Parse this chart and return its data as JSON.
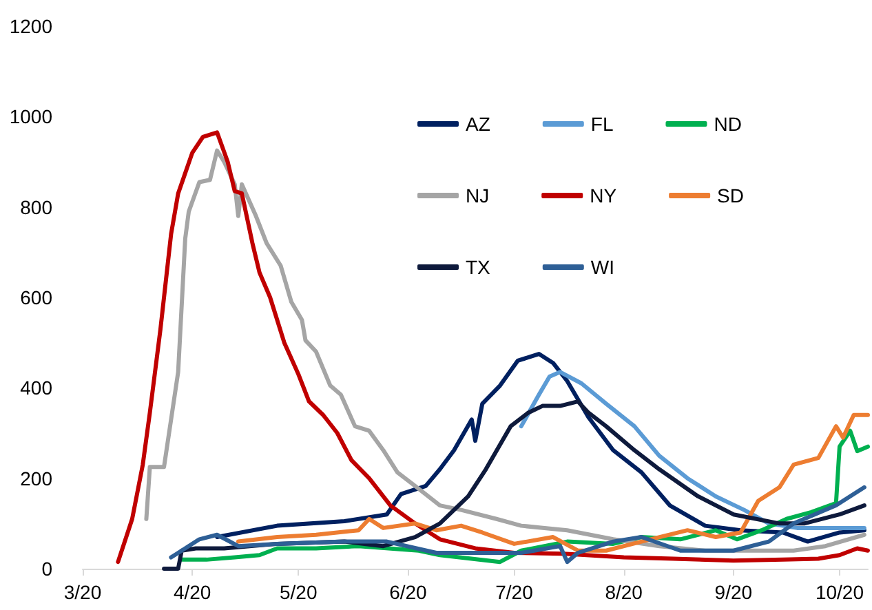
{
  "chart_data": {
    "type": "line",
    "xlim": [
      "2020-03-01",
      "2020-10-09"
    ],
    "ylim": [
      0,
      1200
    ],
    "yticks": [
      0,
      200,
      400,
      600,
      800,
      1000,
      1200
    ],
    "xticks": [
      {
        "value": "2020-03-01",
        "label": "3/20"
      },
      {
        "value": "2020-04-01",
        "label": "4/20"
      },
      {
        "value": "2020-05-01",
        "label": "5/20"
      },
      {
        "value": "2020-06-01",
        "label": "6/20"
      },
      {
        "value": "2020-07-01",
        "label": "7/20"
      },
      {
        "value": "2020-08-01",
        "label": "8/20"
      },
      {
        "value": "2020-09-01",
        "label": "9/20"
      },
      {
        "value": "2020-10-01",
        "label": "10/20"
      }
    ],
    "grid": false,
    "legend": "top right",
    "marker": "none",
    "line_style": "solid",
    "series": [
      {
        "name": "AZ",
        "color": "#002060",
        "x": [
          "2020-04-08",
          "2020-04-25",
          "2020-05-14",
          "2020-05-26",
          "2020-05-30",
          "2020-06-06",
          "2020-06-10",
          "2020-06-14",
          "2020-06-19",
          "2020-06-20",
          "2020-06-22",
          "2020-06-27",
          "2020-07-02",
          "2020-07-06",
          "2020-07-08",
          "2020-07-12",
          "2020-07-16",
          "2020-07-22",
          "2020-07-29",
          "2020-08-06",
          "2020-08-14",
          "2020-08-24",
          "2020-09-03",
          "2020-09-15",
          "2020-09-22",
          "2020-10-01",
          "2020-10-08"
        ],
        "values": [
          70,
          95,
          105,
          120,
          165,
          183,
          220,
          262,
          330,
          283,
          365,
          405,
          460,
          470,
          475,
          455,
          415,
          335,
          262,
          213,
          140,
          95,
          85,
          80,
          60,
          80,
          85
        ]
      },
      {
        "name": "FL",
        "color": "#5b9bd5",
        "x": [
          "2020-07-03",
          "2020-07-08",
          "2020-07-11",
          "2020-07-14",
          "2020-07-20",
          "2020-07-27",
          "2020-08-04",
          "2020-08-11",
          "2020-08-19",
          "2020-08-27",
          "2020-09-04",
          "2020-09-11",
          "2020-09-19",
          "2020-10-01",
          "2020-10-08"
        ],
        "values": [
          315,
          385,
          425,
          435,
          410,
          365,
          315,
          250,
          200,
          160,
          130,
          100,
          90,
          90,
          90
        ]
      },
      {
        "name": "ND",
        "color": "#00b050",
        "x": [
          "2020-03-29",
          "2020-04-05",
          "2020-04-13",
          "2020-04-20",
          "2020-04-25",
          "2020-05-06",
          "2020-05-18",
          "2020-06-04",
          "2020-06-10",
          "2020-06-27",
          "2020-07-03",
          "2020-07-16",
          "2020-07-29",
          "2020-08-06",
          "2020-08-17",
          "2020-08-27",
          "2020-09-02",
          "2020-09-09",
          "2020-09-16",
          "2020-09-23",
          "2020-09-30",
          "2020-10-01",
          "2020-10-04",
          "2020-10-06",
          "2020-10-09"
        ],
        "values": [
          20,
          20,
          25,
          30,
          45,
          45,
          50,
          40,
          30,
          15,
          40,
          60,
          55,
          70,
          65,
          85,
          65,
          85,
          110,
          125,
          145,
          270,
          305,
          260,
          270
        ]
      },
      {
        "name": "NJ",
        "color": "#a5a5a5",
        "x": [
          "2020-03-19",
          "2020-03-20",
          "2020-03-24",
          "2020-03-28",
          "2020-03-30",
          "2020-03-31",
          "2020-04-03",
          "2020-04-06",
          "2020-04-08",
          "2020-04-10",
          "2020-04-13",
          "2020-04-14",
          "2020-04-15",
          "2020-04-19",
          "2020-04-22",
          "2020-04-26",
          "2020-04-29",
          "2020-05-02",
          "2020-05-03",
          "2020-05-06",
          "2020-05-10",
          "2020-05-13",
          "2020-05-17",
          "2020-05-21",
          "2020-05-25",
          "2020-05-29",
          "2020-06-03",
          "2020-06-10",
          "2020-06-16",
          "2020-06-26",
          "2020-07-03",
          "2020-07-16",
          "2020-07-29",
          "2020-08-11",
          "2020-08-24",
          "2020-09-06",
          "2020-09-18",
          "2020-09-27",
          "2020-10-08"
        ],
        "values": [
          110,
          225,
          225,
          435,
          730,
          790,
          855,
          860,
          925,
          900,
          850,
          780,
          850,
          780,
          720,
          670,
          590,
          550,
          505,
          480,
          405,
          385,
          315,
          305,
          262,
          213,
          183,
          140,
          130,
          110,
          95,
          85,
          65,
          50,
          40,
          40,
          40,
          50,
          75
        ]
      },
      {
        "name": "NY",
        "color": "#c00000",
        "x": [
          "2020-03-11",
          "2020-03-15",
          "2020-03-18",
          "2020-03-20",
          "2020-03-23",
          "2020-03-26",
          "2020-03-28",
          "2020-04-01",
          "2020-04-04",
          "2020-04-08",
          "2020-04-11",
          "2020-04-13",
          "2020-04-15",
          "2020-04-18",
          "2020-04-20",
          "2020-04-23",
          "2020-04-27",
          "2020-05-01",
          "2020-05-04",
          "2020-05-08",
          "2020-05-12",
          "2020-05-16",
          "2020-05-21",
          "2020-05-27",
          "2020-06-03",
          "2020-06-10",
          "2020-06-20",
          "2020-07-01",
          "2020-07-15",
          "2020-08-01",
          "2020-08-15",
          "2020-09-01",
          "2020-09-15",
          "2020-09-25",
          "2020-10-01",
          "2020-10-06",
          "2020-10-09"
        ],
        "values": [
          15,
          110,
          230,
          345,
          530,
          740,
          830,
          920,
          955,
          965,
          900,
          835,
          830,
          720,
          655,
          600,
          500,
          430,
          370,
          340,
          300,
          240,
          200,
          140,
          100,
          65,
          45,
          35,
          33,
          25,
          22,
          18,
          20,
          22,
          30,
          45,
          40
        ]
      },
      {
        "name": "SD",
        "color": "#ed7d31",
        "x": [
          "2020-04-14",
          "2020-04-25",
          "2020-05-06",
          "2020-05-18",
          "2020-05-21",
          "2020-05-25",
          "2020-06-03",
          "2020-06-09",
          "2020-06-16",
          "2020-06-22",
          "2020-07-01",
          "2020-07-12",
          "2020-07-19",
          "2020-07-27",
          "2020-08-06",
          "2020-08-19",
          "2020-08-27",
          "2020-09-03",
          "2020-09-08",
          "2020-09-14",
          "2020-09-18",
          "2020-09-25",
          "2020-09-30",
          "2020-10-02",
          "2020-10-05",
          "2020-10-09"
        ],
        "values": [
          60,
          70,
          75,
          85,
          110,
          90,
          100,
          85,
          95,
          80,
          55,
          70,
          40,
          40,
          60,
          85,
          70,
          80,
          150,
          180,
          230,
          245,
          315,
          290,
          340,
          340
        ]
      },
      {
        "name": "TX",
        "color": "#0e1a3c",
        "x": [
          "2020-03-24",
          "2020-03-28",
          "2020-03-29",
          "2020-04-02",
          "2020-04-10",
          "2020-04-25",
          "2020-05-14",
          "2020-05-25",
          "2020-06-03",
          "2020-06-10",
          "2020-06-18",
          "2020-06-23",
          "2020-06-30",
          "2020-07-05",
          "2020-07-09",
          "2020-07-14",
          "2020-07-19",
          "2020-07-22",
          "2020-07-27",
          "2020-08-04",
          "2020-08-11",
          "2020-08-22",
          "2020-09-01",
          "2020-09-14",
          "2020-09-21",
          "2020-10-01",
          "2020-10-08"
        ],
        "values": [
          0,
          0,
          40,
          45,
          45,
          55,
          60,
          50,
          70,
          100,
          160,
          220,
          315,
          345,
          360,
          360,
          370,
          345,
          315,
          262,
          220,
          160,
          120,
          100,
          100,
          120,
          140
        ]
      },
      {
        "name": "WI",
        "color": "#2e5f96",
        "x": [
          "2020-03-26",
          "2020-04-03",
          "2020-04-08",
          "2020-04-14",
          "2020-04-25",
          "2020-05-14",
          "2020-05-26",
          "2020-06-09",
          "2020-07-03",
          "2020-07-14",
          "2020-07-16",
          "2020-07-19",
          "2020-07-29",
          "2020-08-06",
          "2020-08-17",
          "2020-09-01",
          "2020-09-11",
          "2020-09-18",
          "2020-09-30",
          "2020-10-08"
        ],
        "values": [
          25,
          65,
          75,
          50,
          55,
          60,
          60,
          35,
          35,
          50,
          15,
          35,
          60,
          70,
          40,
          40,
          60,
          100,
          140,
          180
        ]
      }
    ]
  }
}
